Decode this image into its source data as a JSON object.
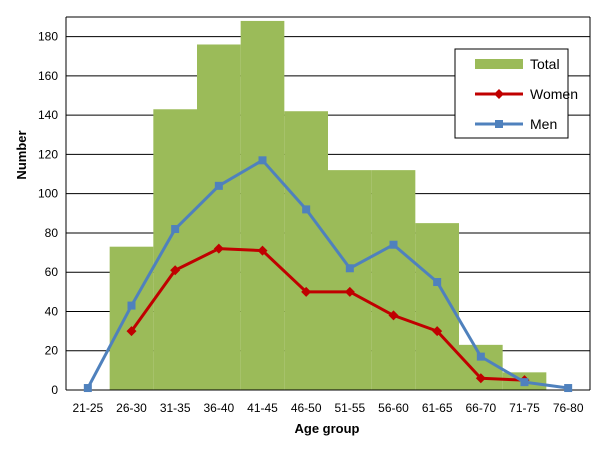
{
  "chart_data": {
    "type": "bar",
    "title": "",
    "xlabel": "Age group",
    "ylabel": "Number",
    "ylim": [
      0,
      190
    ],
    "yticks": [
      0,
      20,
      40,
      60,
      80,
      100,
      120,
      140,
      160,
      180
    ],
    "grid": true,
    "legend_position": "top-right",
    "categories": [
      "21-25",
      "26-30",
      "31-35",
      "36-40",
      "41-45",
      "46-50",
      "51-55",
      "56-60",
      "61-65",
      "66-70",
      "71-75",
      "76-80"
    ],
    "series": [
      {
        "name": "Total",
        "kind": "bar",
        "color": "#9BBB59",
        "values": [
          0,
          73,
          143,
          176,
          188,
          142,
          112,
          112,
          85,
          23,
          9,
          0
        ]
      },
      {
        "name": "Women",
        "kind": "line",
        "marker": "diamond",
        "color": "#C00000",
        "values": [
          null,
          30,
          61,
          72,
          71,
          50,
          50,
          38,
          30,
          6,
          5,
          null
        ]
      },
      {
        "name": "Men",
        "kind": "line",
        "marker": "square",
        "color": "#4F81BD",
        "values": [
          1,
          43,
          82,
          104,
          117,
          92,
          62,
          74,
          55,
          17,
          4,
          1
        ]
      }
    ]
  }
}
